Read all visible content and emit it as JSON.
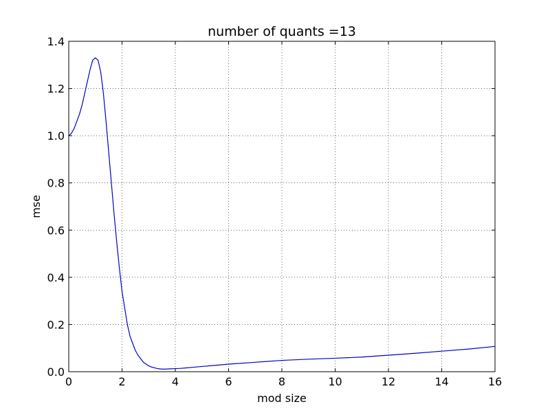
{
  "chart_data": {
    "type": "line",
    "title": "number of quants =13",
    "xlabel": "mod size",
    "ylabel": "mse",
    "xlim": [
      0,
      16
    ],
    "ylim": [
      0.0,
      1.4
    ],
    "xticks": [
      0,
      2,
      4,
      6,
      8,
      10,
      12,
      14,
      16
    ],
    "xtick_labels": [
      "0",
      "2",
      "4",
      "6",
      "8",
      "10",
      "12",
      "14",
      "16"
    ],
    "yticks": [
      0.0,
      0.2,
      0.4,
      0.6,
      0.8,
      1.0,
      1.2,
      1.4
    ],
    "ytick_labels": [
      "0.0",
      "0.2",
      "0.4",
      "0.6",
      "0.8",
      "1.0",
      "1.2",
      "1.4"
    ],
    "grid": true,
    "grid_style": "dotted",
    "series": [
      {
        "color": "#0000cc",
        "x": [
          0.0,
          0.1,
          0.2,
          0.3,
          0.4,
          0.5,
          0.6,
          0.7,
          0.8,
          0.9,
          1.0,
          1.1,
          1.2,
          1.3,
          1.4,
          1.5,
          1.6,
          1.7,
          1.8,
          1.9,
          2.0,
          2.1,
          2.2,
          2.3,
          2.4,
          2.5,
          2.6,
          2.7,
          2.8,
          2.9,
          3.0,
          3.1,
          3.2,
          3.3,
          3.4,
          3.5,
          3.6,
          3.8,
          4.0,
          4.2,
          4.4,
          4.6,
          5.0,
          5.5,
          6.0,
          7.0,
          8.0,
          9.0,
          10.0,
          11.0,
          12.0,
          13.0,
          14.0,
          15.0,
          16.0
        ],
        "y": [
          1.0,
          1.01,
          1.03,
          1.06,
          1.09,
          1.13,
          1.18,
          1.23,
          1.28,
          1.32,
          1.33,
          1.32,
          1.27,
          1.18,
          1.06,
          0.93,
          0.8,
          0.67,
          0.55,
          0.44,
          0.34,
          0.27,
          0.2,
          0.15,
          0.12,
          0.09,
          0.07,
          0.055,
          0.04,
          0.032,
          0.025,
          0.02,
          0.017,
          0.014,
          0.012,
          0.011,
          0.011,
          0.012,
          0.013,
          0.014,
          0.016,
          0.018,
          0.022,
          0.027,
          0.032,
          0.04,
          0.048,
          0.053,
          0.057,
          0.062,
          0.07,
          0.078,
          0.087,
          0.096,
          0.107
        ]
      }
    ]
  }
}
